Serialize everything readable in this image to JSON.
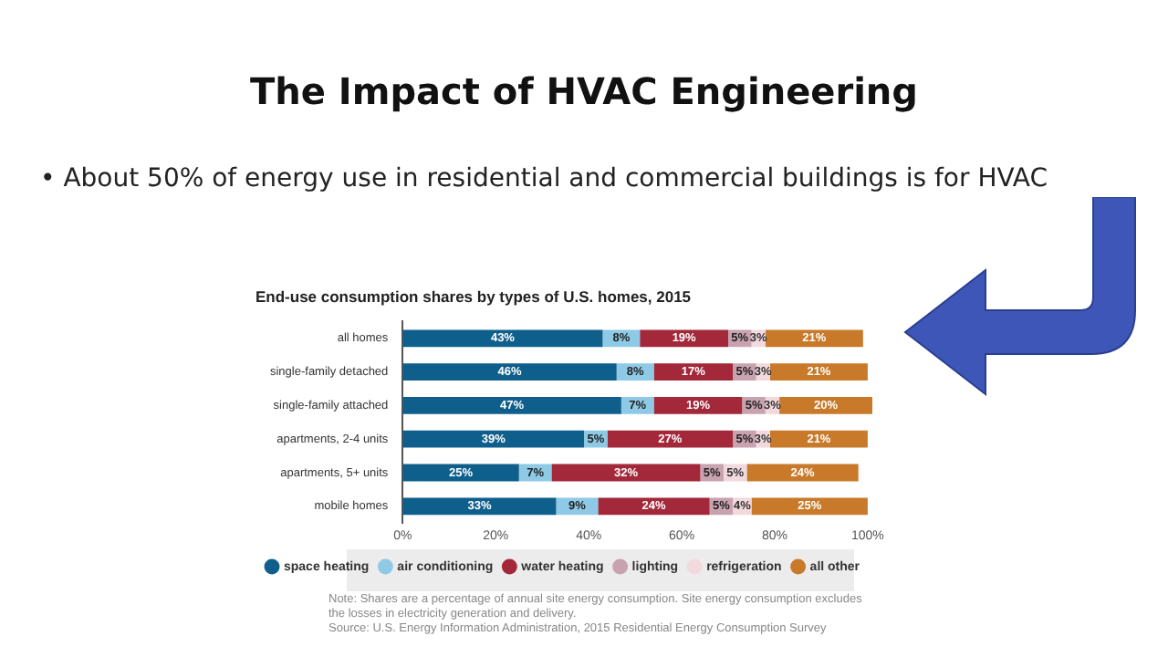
{
  "chart_data": {
    "type": "bar",
    "orientation": "horizontal",
    "stacked": true,
    "title": "The Impact of HVAC Engineering",
    "subtitle": "End-use consumption shares by types of U.S. homes, 2015",
    "categories": [
      "all homes",
      "single-family detached",
      "single-family attached",
      "apartments, 2-4 units",
      "apartments, 5+ units",
      "mobile homes"
    ],
    "series": [
      {
        "name": "space heating",
        "color": "#0f5f8c",
        "values": [
          43,
          46,
          47,
          39,
          25,
          33
        ],
        "value_labels": [
          "43%",
          "46%",
          "47%",
          "39%",
          "25%",
          "33%"
        ]
      },
      {
        "name": "air conditioning",
        "color": "#8ecae6",
        "values": [
          8,
          8,
          7,
          5,
          7,
          9
        ],
        "value_labels": [
          "8%",
          "8%",
          "7%",
          "5%",
          "7%",
          "9%"
        ]
      },
      {
        "name": "water heating",
        "color": "#a2283a",
        "values": [
          19,
          17,
          19,
          27,
          32,
          24
        ],
        "value_labels": [
          "19%",
          "17%",
          "19%",
          "27%",
          "32%",
          "24%"
        ]
      },
      {
        "name": "lighting",
        "color": "#c9a2b0",
        "values": [
          5,
          5,
          5,
          5,
          5,
          5
        ],
        "value_labels": [
          "5%",
          "5%",
          "5%",
          "5%",
          "5%",
          "5%"
        ]
      },
      {
        "name": "refrigeration",
        "color": "#f2d9dd",
        "values": [
          3,
          3,
          3,
          3,
          5,
          4
        ],
        "value_labels": [
          "3%",
          "3%",
          "3%",
          "3%",
          "5%",
          "4%"
        ]
      },
      {
        "name": "all other",
        "color": "#c87a2a",
        "values": [
          21,
          21,
          20,
          21,
          24,
          25
        ],
        "value_labels": [
          "21%",
          "21%",
          "20%",
          "21%",
          "24%",
          "25%"
        ]
      }
    ],
    "xlim": [
      0,
      101
    ],
    "xticks": [
      {
        "value": 0,
        "label": "0%"
      },
      {
        "value": 20,
        "label": "20%"
      },
      {
        "value": 40,
        "label": "40%"
      },
      {
        "value": 60,
        "label": "60%"
      },
      {
        "value": 80,
        "label": "80%"
      },
      {
        "value": 100,
        "label": "100%"
      }
    ],
    "grid": false,
    "legend": "bottom",
    "marker": "circle",
    "annotations": [
      "• About 50% of energy use in residential and commercial buildings is for HVAC",
      "Note: Shares are a percentage of annual site energy consumption. Site energy consumption excludes the losses in electricity generation and delivery.",
      "Source: U.S. Energy Information Administration, 2015 Residential Energy Consumption Survey"
    ]
  }
}
